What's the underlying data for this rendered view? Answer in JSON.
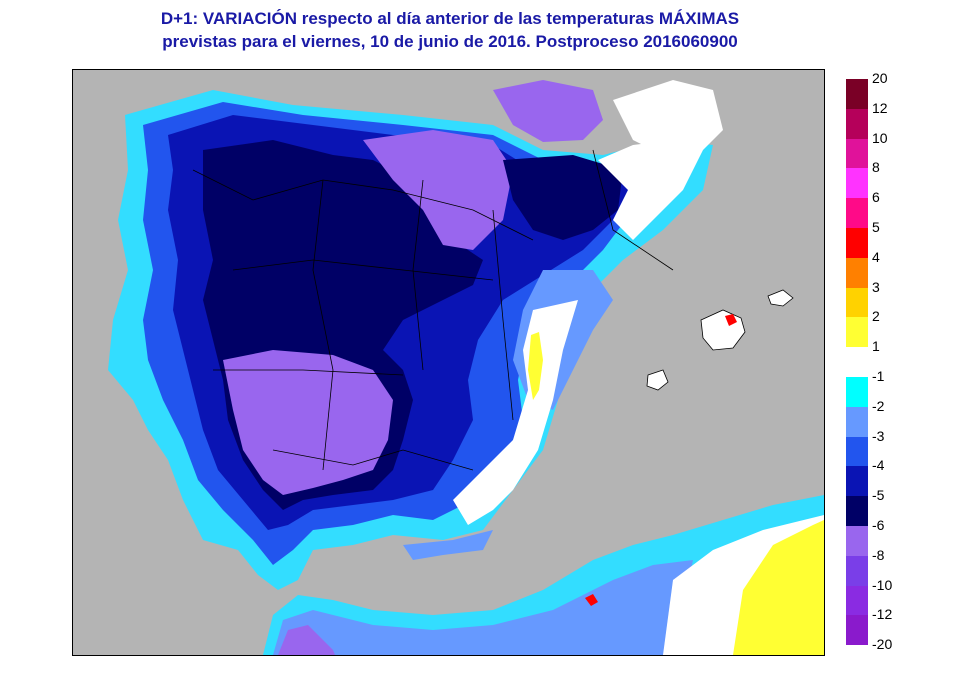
{
  "title": {
    "line1": "D+1:  VARIACIÓN respecto al día anterior de las temperaturas MÁXIMAS",
    "line2": "previstas para el viernes, 10 de junio de 2016. Postproceso 2016060900"
  },
  "legend": {
    "positive": [
      {
        "label": "20",
        "color": "#7a0026"
      },
      {
        "label": "12",
        "color": "#b5005a"
      },
      {
        "label": "10",
        "color": "#e0129a"
      },
      {
        "label": "8",
        "color": "#ff33ff"
      },
      {
        "label": "6",
        "color": "#ff0a88"
      },
      {
        "label": "5",
        "color": "#ff0000"
      },
      {
        "label": "4",
        "color": "#ff8000"
      },
      {
        "label": "3",
        "color": "#ffd200"
      },
      {
        "label": "2",
        "color": "#ffff33"
      },
      {
        "label": "1",
        "color": ""
      }
    ],
    "negative": [
      {
        "label": "-1",
        "color": "#00ffff"
      },
      {
        "label": "-2",
        "color": "#6699ff"
      },
      {
        "label": "-3",
        "color": "#2255ee"
      },
      {
        "label": "-4",
        "color": "#0a14b4"
      },
      {
        "label": "-5",
        "color": "#000066"
      },
      {
        "label": "-6",
        "color": "#9966ee"
      },
      {
        "label": "-8",
        "color": "#7a3ee8"
      },
      {
        "label": "-10",
        "color": "#8a2be2"
      },
      {
        "label": "-12",
        "color": "#8a1acc"
      },
      {
        "label": "-20",
        "color": ""
      }
    ]
  },
  "colors": {
    "sea": "#b4b4b4",
    "no_change": "#ffffff",
    "title": "#1a1aa6"
  }
}
